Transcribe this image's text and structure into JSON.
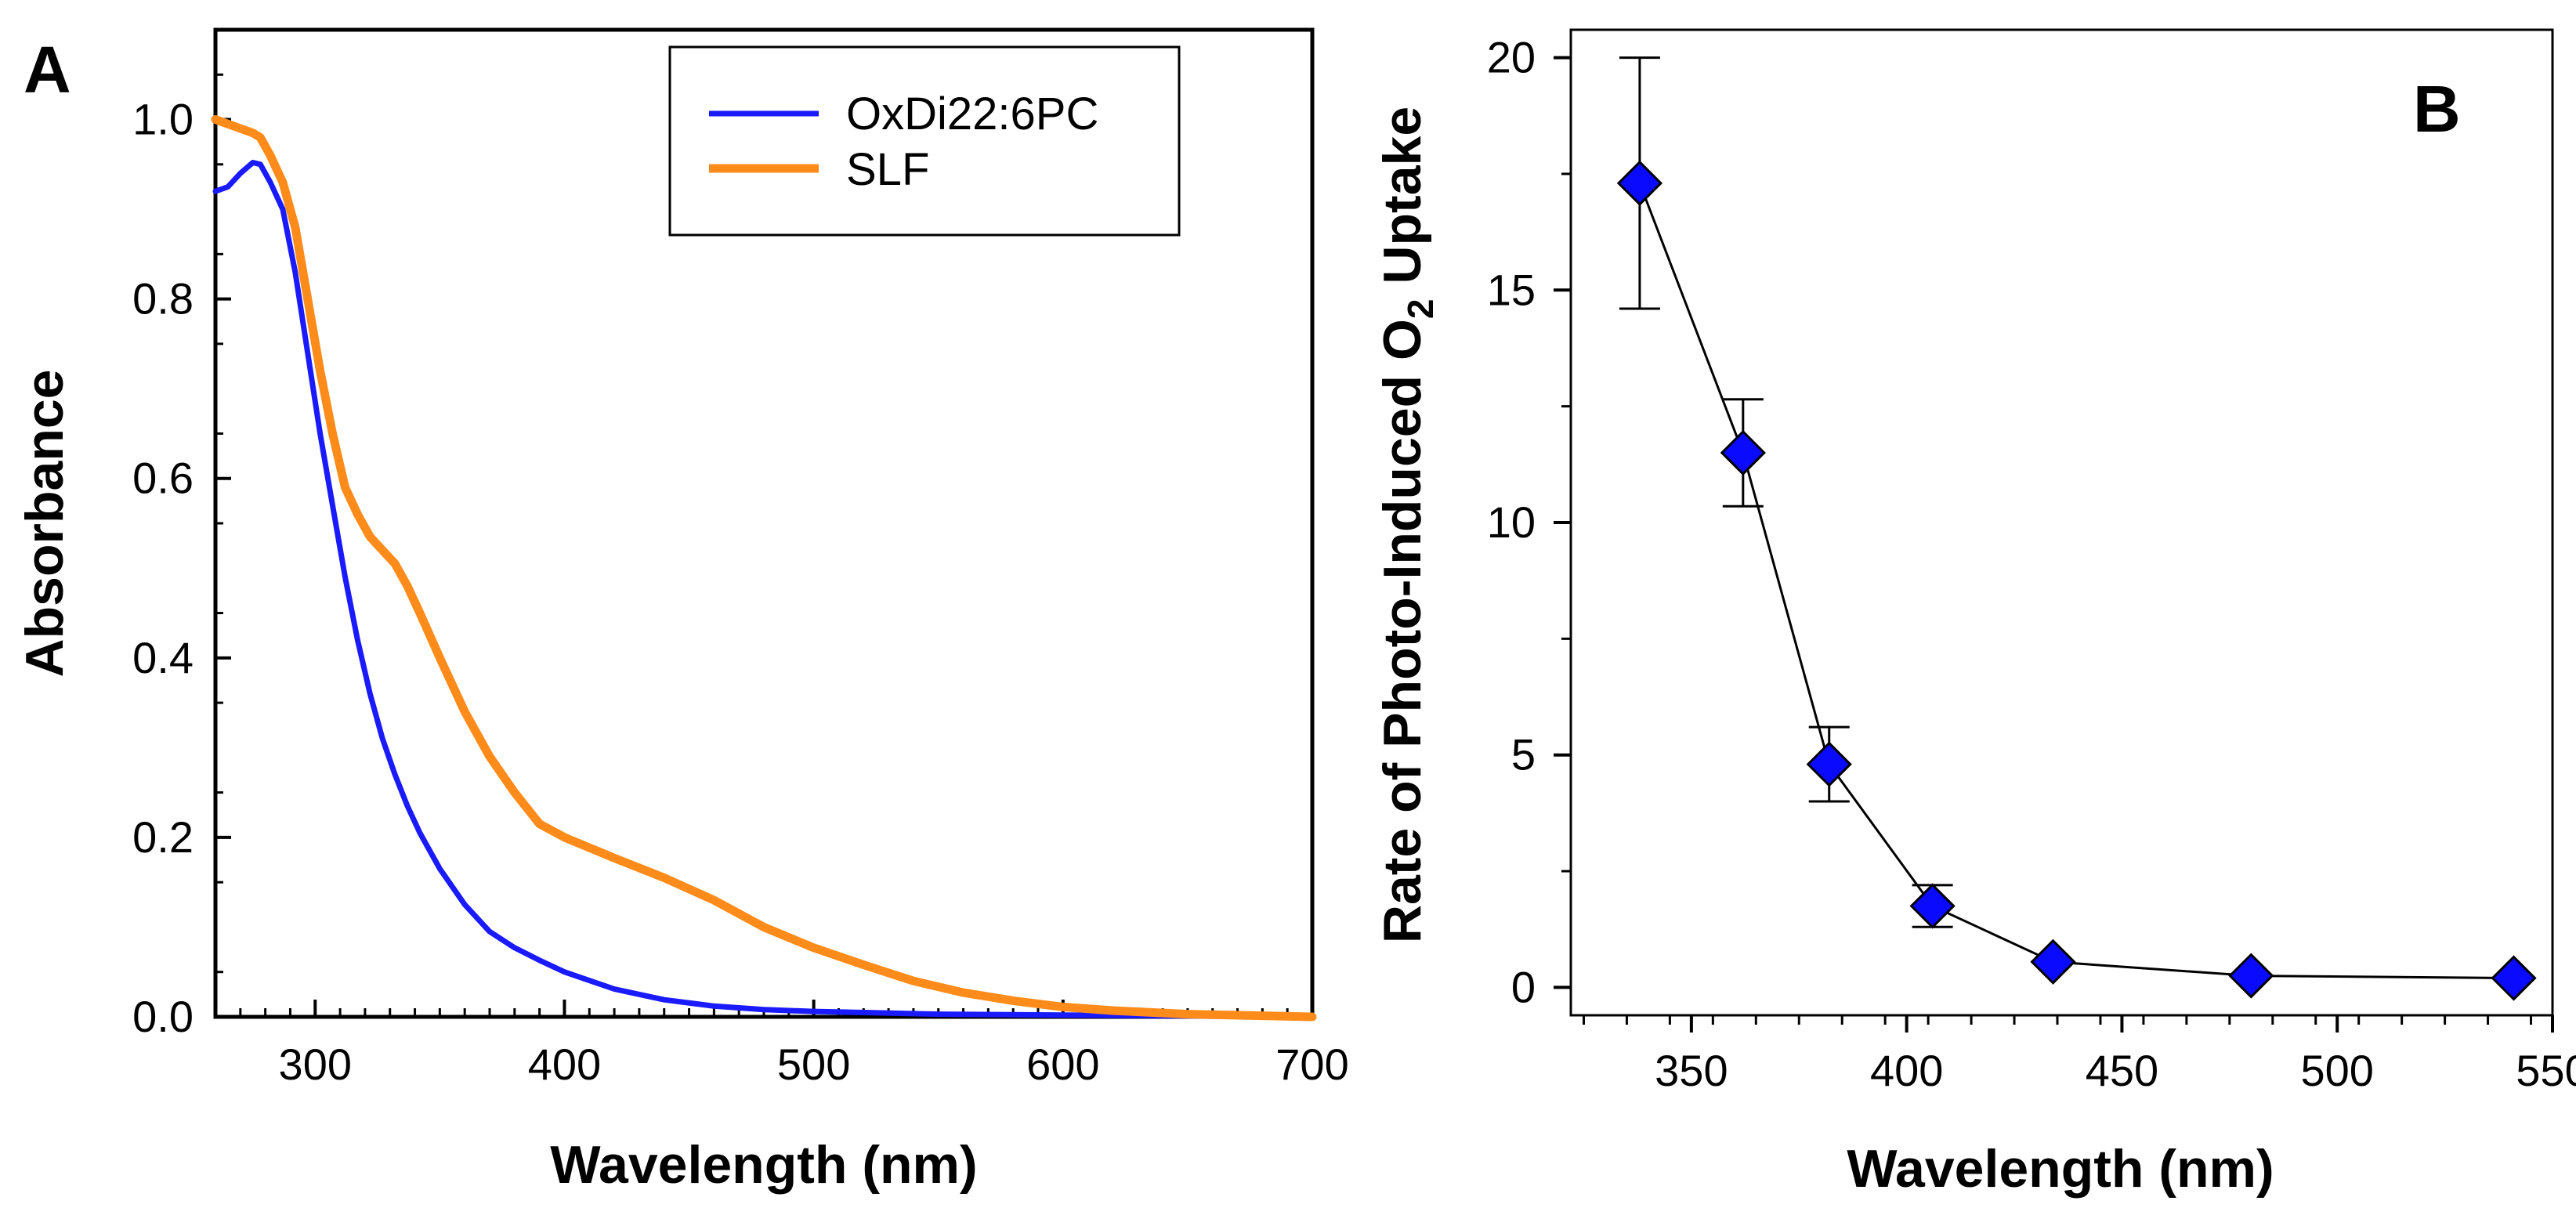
{
  "colors": {
    "series_blue": "#1a1aff",
    "series_orange": "#ff8c1a",
    "marker_fill": "#0a0aff",
    "axis": "#000000"
  },
  "chart_data": [
    {
      "panel_label": "A",
      "type": "line",
      "title": "",
      "xlabel": "Wavelength (nm)",
      "ylabel": "Absorbance",
      "xlim": [
        260,
        700
      ],
      "ylim": [
        0,
        1.1
      ],
      "xticks": [
        300,
        400,
        500,
        600,
        700
      ],
      "xtick_labels": [
        "300",
        "400",
        "500",
        "600",
        "700"
      ],
      "yticks": [
        0,
        0.2,
        0.4,
        0.6,
        0.8,
        1.0
      ],
      "ytick_labels": [
        "0.0",
        "0.2",
        "0.4",
        "0.6",
        "0.8",
        "1.0"
      ],
      "legend_position": "top-right",
      "series": [
        {
          "name": "OxDi22:6PC",
          "color": "#1a1aff",
          "x": [
            260,
            265,
            270,
            275,
            278,
            282,
            287,
            292,
            297,
            302,
            307,
            312,
            317,
            322,
            327,
            332,
            337,
            342,
            350,
            360,
            370,
            380,
            390,
            400,
            420,
            440,
            460,
            480,
            500,
            550,
            600,
            650,
            700
          ],
          "y": [
            0.92,
            0.925,
            0.94,
            0.952,
            0.95,
            0.93,
            0.9,
            0.83,
            0.74,
            0.65,
            0.57,
            0.49,
            0.42,
            0.36,
            0.31,
            0.27,
            0.235,
            0.205,
            0.165,
            0.125,
            0.095,
            0.077,
            0.063,
            0.05,
            0.031,
            0.019,
            0.012,
            0.008,
            0.006,
            0.003,
            0.002,
            0.001,
            0.0
          ]
        },
        {
          "name": "SLF",
          "color": "#ff8c1a",
          "x": [
            260,
            265,
            270,
            275,
            278,
            282,
            287,
            292,
            297,
            302,
            307,
            312,
            317,
            322,
            327,
            332,
            337,
            342,
            350,
            360,
            370,
            380,
            390,
            400,
            420,
            440,
            460,
            480,
            500,
            520,
            540,
            560,
            580,
            600,
            620,
            650,
            700
          ],
          "y": [
            1.0,
            0.995,
            0.99,
            0.985,
            0.98,
            0.96,
            0.93,
            0.88,
            0.8,
            0.72,
            0.65,
            0.59,
            0.56,
            0.535,
            0.52,
            0.505,
            0.48,
            0.45,
            0.4,
            0.34,
            0.29,
            0.25,
            0.215,
            0.2,
            0.177,
            0.155,
            0.13,
            0.1,
            0.077,
            0.058,
            0.04,
            0.027,
            0.018,
            0.011,
            0.007,
            0.003,
            0.0
          ]
        }
      ]
    },
    {
      "panel_label": "B",
      "type": "scatter",
      "title": "",
      "xlabel": "Wavelength (nm)",
      "ylabel_main": "Rate of Photo-Induced O",
      "ylabel_subscript": "2",
      "ylabel_tail": " Uptake",
      "xlim": [
        322,
        550
      ],
      "ylim": [
        -0.6,
        20.6
      ],
      "xticks": [
        350,
        400,
        450,
        500,
        550
      ],
      "xtick_labels": [
        "350",
        "400",
        "450",
        "500",
        "550"
      ],
      "yticks": [
        0,
        5,
        10,
        15,
        20
      ],
      "ytick_labels": [
        "0",
        "5",
        "10",
        "15",
        "20"
      ],
      "series": [
        {
          "name": "O2 uptake rate",
          "color": "#0a0aff",
          "x": [
            338,
            362,
            382,
            406,
            434,
            480,
            541
          ],
          "y": [
            17.3,
            11.5,
            4.8,
            1.75,
            0.55,
            0.25,
            0.2
          ],
          "error": [
            2.7,
            1.15,
            0.8,
            0.45,
            0.0,
            0.0,
            0.0
          ]
        }
      ]
    }
  ]
}
